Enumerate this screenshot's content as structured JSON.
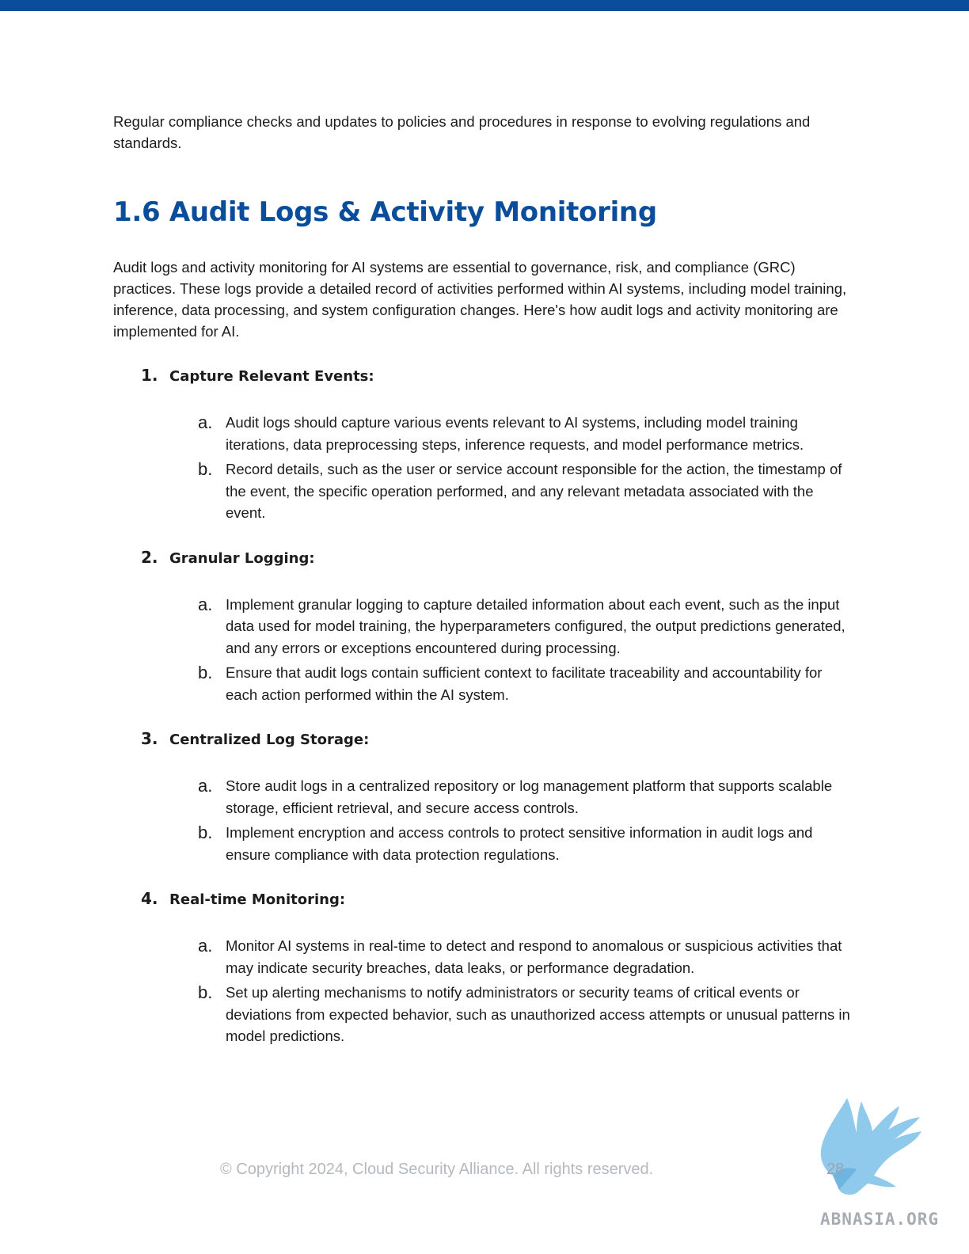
{
  "intro_text": "Regular compliance checks and updates to policies and procedures in response to evolving regulations and standards.",
  "heading": "1.6 Audit Logs & Activity Monitoring",
  "description": "Audit logs and activity monitoring for AI systems are essential to governance, risk, and compliance (GRC) practices. These logs provide a detailed record of activities performed within AI systems, including model training, inference, data processing, and system configuration changes. Here's how audit logs and activity monitoring are implemented for AI.",
  "sections": [
    {
      "number": "1.",
      "title": "Capture Relevant Events:",
      "items": [
        {
          "letter": "a.",
          "text": "Audit logs should capture various events relevant to AI systems, including model training iterations, data preprocessing steps, inference requests, and model performance metrics."
        },
        {
          "letter": "b.",
          "text": "Record details, such as the user or service account responsible for the action, the timestamp of the event, the specific operation performed, and any relevant metadata associated with the event."
        }
      ]
    },
    {
      "number": "2.",
      "title": "Granular Logging:",
      "items": [
        {
          "letter": "a.",
          "text": "Implement granular logging to capture detailed information about each event, such as the input data used for model training, the hyperparameters configured, the output predictions generated, and any errors or exceptions encountered during processing."
        },
        {
          "letter": "b.",
          "text": "Ensure that audit logs contain sufficient context to facilitate traceability and accountability for each action performed within the AI system."
        }
      ]
    },
    {
      "number": "3.",
      "title": "Centralized Log Storage:",
      "items": [
        {
          "letter": "a.",
          "text": "Store audit logs in a centralized repository or log management platform that supports scalable storage, efficient retrieval, and secure access controls."
        },
        {
          "letter": "b.",
          "text": "Implement encryption and access controls to protect sensitive information in audit logs and ensure compliance with data protection regulations."
        }
      ]
    },
    {
      "number": "4.",
      "title": "Real-time Monitoring:",
      "items": [
        {
          "letter": "a.",
          "text": "Monitor AI systems in real-time to detect and respond to anomalous or suspicious activities that may indicate security breaches, data leaks, or performance degradation."
        },
        {
          "letter": "b.",
          "text": "Set up alerting mechanisms to notify administrators or security teams of critical events or deviations from expected behavior, such as unauthorized access attempts or unusual patterns in model predictions."
        }
      ]
    }
  ],
  "footer": {
    "copyright": "© Copyright 2024, Cloud Security Alliance. All rights reserved.",
    "page_number": "28"
  },
  "watermark": {
    "text": "ABNASIA.ORG",
    "icon": "griffin-icon",
    "color": "#7bbfe8"
  },
  "colors": {
    "accent": "#0a4e9b"
  }
}
